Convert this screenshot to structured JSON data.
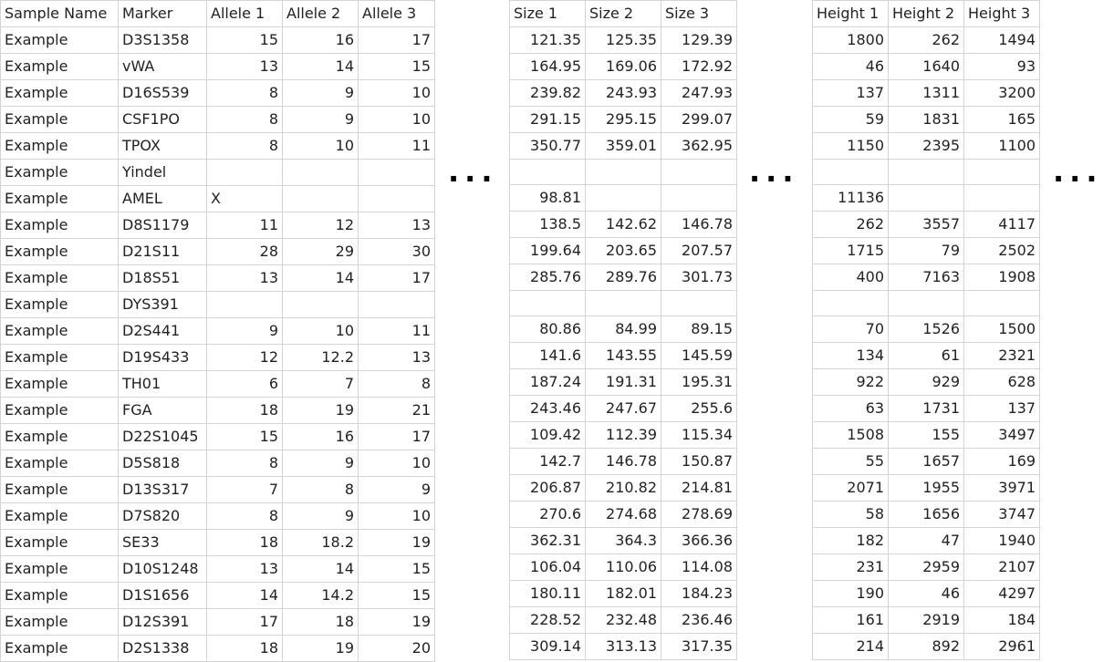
{
  "headers": {
    "left": [
      "Sample Name",
      "Marker",
      "Allele 1",
      "Allele 2",
      "Allele 3"
    ],
    "size": [
      "Size 1",
      "Size 2",
      "Size 3"
    ],
    "height": [
      "Height 1",
      "Height 2",
      "Height 3"
    ]
  },
  "ellipsis": "...",
  "rows": [
    {
      "sample": "Example",
      "marker": "D3S1358",
      "a1": "15",
      "a2": "16",
      "a3": "17",
      "s1": "121.35",
      "s2": "125.35",
      "s3": "129.39",
      "h1": "1800",
      "h2": "262",
      "h3": "1494"
    },
    {
      "sample": "Example",
      "marker": "vWA",
      "a1": "13",
      "a2": "14",
      "a3": "15",
      "s1": "164.95",
      "s2": "169.06",
      "s3": "172.92",
      "h1": "46",
      "h2": "1640",
      "h3": "93"
    },
    {
      "sample": "Example",
      "marker": "D16S539",
      "a1": "8",
      "a2": "9",
      "a3": "10",
      "s1": "239.82",
      "s2": "243.93",
      "s3": "247.93",
      "h1": "137",
      "h2": "1311",
      "h3": "3200"
    },
    {
      "sample": "Example",
      "marker": "CSF1PO",
      "a1": "8",
      "a2": "9",
      "a3": "10",
      "s1": "291.15",
      "s2": "295.15",
      "s3": "299.07",
      "h1": "59",
      "h2": "1831",
      "h3": "165"
    },
    {
      "sample": "Example",
      "marker": "TPOX",
      "a1": "8",
      "a2": "10",
      "a3": "11",
      "s1": "350.77",
      "s2": "359.01",
      "s3": "362.95",
      "h1": "1150",
      "h2": "2395",
      "h3": "1100"
    },
    {
      "sample": "Example",
      "marker": "Yindel",
      "a1": "",
      "a2": "",
      "a3": "",
      "s1": "",
      "s2": "",
      "s3": "",
      "h1": "",
      "h2": "",
      "h3": ""
    },
    {
      "sample": "Example",
      "marker": "AMEL",
      "a1": "X",
      "a2": "",
      "a3": "",
      "s1": "98.81",
      "s2": "",
      "s3": "",
      "h1": "11136",
      "h2": "",
      "h3": ""
    },
    {
      "sample": "Example",
      "marker": "D8S1179",
      "a1": "11",
      "a2": "12",
      "a3": "13",
      "s1": "138.5",
      "s2": "142.62",
      "s3": "146.78",
      "h1": "262",
      "h2": "3557",
      "h3": "4117"
    },
    {
      "sample": "Example",
      "marker": "D21S11",
      "a1": "28",
      "a2": "29",
      "a3": "30",
      "s1": "199.64",
      "s2": "203.65",
      "s3": "207.57",
      "h1": "1715",
      "h2": "79",
      "h3": "2502"
    },
    {
      "sample": "Example",
      "marker": "D18S51",
      "a1": "13",
      "a2": "14",
      "a3": "17",
      "s1": "285.76",
      "s2": "289.76",
      "s3": "301.73",
      "h1": "400",
      "h2": "7163",
      "h3": "1908"
    },
    {
      "sample": "Example",
      "marker": "DYS391",
      "a1": "",
      "a2": "",
      "a3": "",
      "s1": "",
      "s2": "",
      "s3": "",
      "h1": "",
      "h2": "",
      "h3": ""
    },
    {
      "sample": "Example",
      "marker": "D2S441",
      "a1": "9",
      "a2": "10",
      "a3": "11",
      "s1": "80.86",
      "s2": "84.99",
      "s3": "89.15",
      "h1": "70",
      "h2": "1526",
      "h3": "1500"
    },
    {
      "sample": "Example",
      "marker": "D19S433",
      "a1": "12",
      "a2": "12.2",
      "a3": "13",
      "s1": "141.6",
      "s2": "143.55",
      "s3": "145.59",
      "h1": "134",
      "h2": "61",
      "h3": "2321"
    },
    {
      "sample": "Example",
      "marker": "TH01",
      "a1": "6",
      "a2": "7",
      "a3": "8",
      "s1": "187.24",
      "s2": "191.31",
      "s3": "195.31",
      "h1": "922",
      "h2": "929",
      "h3": "628"
    },
    {
      "sample": "Example",
      "marker": "FGA",
      "a1": "18",
      "a2": "19",
      "a3": "21",
      "s1": "243.46",
      "s2": "247.67",
      "s3": "255.6",
      "h1": "63",
      "h2": "1731",
      "h3": "137"
    },
    {
      "sample": "Example",
      "marker": "D22S1045",
      "a1": "15",
      "a2": "16",
      "a3": "17",
      "s1": "109.42",
      "s2": "112.39",
      "s3": "115.34",
      "h1": "1508",
      "h2": "155",
      "h3": "3497"
    },
    {
      "sample": "Example",
      "marker": "D5S818",
      "a1": "8",
      "a2": "9",
      "a3": "10",
      "s1": "142.7",
      "s2": "146.78",
      "s3": "150.87",
      "h1": "55",
      "h2": "1657",
      "h3": "169"
    },
    {
      "sample": "Example",
      "marker": "D13S317",
      "a1": "7",
      "a2": "8",
      "a3": "9",
      "s1": "206.87",
      "s2": "210.82",
      "s3": "214.81",
      "h1": "2071",
      "h2": "1955",
      "h3": "3971"
    },
    {
      "sample": "Example",
      "marker": "D7S820",
      "a1": "8",
      "a2": "9",
      "a3": "10",
      "s1": "270.6",
      "s2": "274.68",
      "s3": "278.69",
      "h1": "58",
      "h2": "1656",
      "h3": "3747"
    },
    {
      "sample": "Example",
      "marker": "SE33",
      "a1": "18",
      "a2": "18.2",
      "a3": "19",
      "s1": "362.31",
      "s2": "364.3",
      "s3": "366.36",
      "h1": "182",
      "h2": "47",
      "h3": "1940"
    },
    {
      "sample": "Example",
      "marker": "D10S1248",
      "a1": "13",
      "a2": "14",
      "a3": "15",
      "s1": "106.04",
      "s2": "110.06",
      "s3": "114.08",
      "h1": "231",
      "h2": "2959",
      "h3": "2107"
    },
    {
      "sample": "Example",
      "marker": "D1S1656",
      "a1": "14",
      "a2": "14.2",
      "a3": "15",
      "s1": "180.11",
      "s2": "182.01",
      "s3": "184.23",
      "h1": "190",
      "h2": "46",
      "h3": "4297"
    },
    {
      "sample": "Example",
      "marker": "D12S391",
      "a1": "17",
      "a2": "18",
      "a3": "19",
      "s1": "228.52",
      "s2": "232.48",
      "s3": "236.46",
      "h1": "161",
      "h2": "2919",
      "h3": "184"
    },
    {
      "sample": "Example",
      "marker": "D2S1338",
      "a1": "18",
      "a2": "19",
      "a3": "20",
      "s1": "309.14",
      "s2": "313.13",
      "s3": "317.35",
      "h1": "214",
      "h2": "892",
      "h3": "2961"
    }
  ]
}
